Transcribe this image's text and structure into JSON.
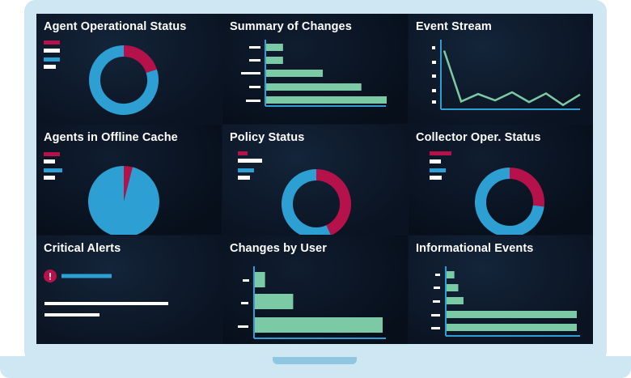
{
  "colors": {
    "teal": "#2e9fd3",
    "crimson": "#b5124c",
    "mint": "#7cc9a5",
    "white": "#ffffff",
    "screen_bg": "#0b1422",
    "frame": "#cfe6f3"
  },
  "panels": {
    "agent_status": {
      "title": "Agent Operational Status",
      "donut": [
        {
          "color": "crimson",
          "fraction": 0.2
        },
        {
          "color": "teal",
          "fraction": 0.8
        }
      ],
      "legend": [
        "crimson",
        "white",
        "teal",
        "white"
      ]
    },
    "summary_changes": {
      "title": "Summary of Changes",
      "bars": [
        0.14,
        0.14,
        0.47,
        0.79,
        1.0
      ]
    },
    "event_stream": {
      "title": "Event Stream",
      "line": [
        10,
        1.2,
        2.5,
        1.4,
        2.8,
        1.1,
        2.6,
        0.6,
        2.4
      ]
    },
    "offline_cache": {
      "title": "Agents in Offline Cache",
      "pie": [
        {
          "color": "crimson",
          "fraction": 0.04
        },
        {
          "color": "teal",
          "fraction": 0.96
        }
      ],
      "legend": [
        "crimson",
        "white",
        "teal",
        "white"
      ]
    },
    "policy_status": {
      "title": "Policy Status",
      "donut": [
        {
          "color": "crimson",
          "fraction": 0.43
        },
        {
          "color": "teal",
          "fraction": 0.57
        }
      ],
      "legend": [
        "crimson",
        "white",
        "teal",
        "white"
      ]
    },
    "collector_status": {
      "title": "Collector Oper. Status",
      "donut": [
        {
          "color": "crimson",
          "fraction": 0.27
        },
        {
          "color": "teal",
          "fraction": 0.73
        }
      ],
      "legend": [
        "crimson",
        "white",
        "teal",
        "white"
      ]
    },
    "critical_alerts": {
      "title": "Critical Alerts",
      "alert_icon": "exclamation-icon",
      "alert_glyph": "!"
    },
    "changes_by_user": {
      "title": "Changes by User",
      "bars": [
        0.08,
        0.3,
        1.0
      ]
    },
    "informational_events": {
      "title": "Informational Events",
      "bars": [
        0.06,
        0.09,
        0.13,
        1.0,
        1.0
      ]
    }
  }
}
